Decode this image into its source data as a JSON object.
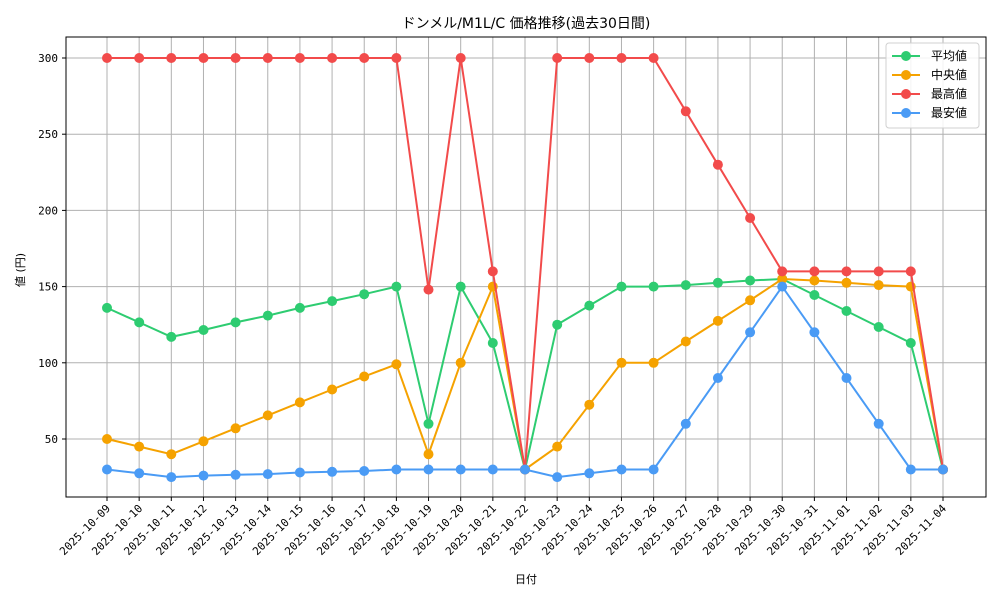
{
  "chart_data": {
    "type": "line",
    "title": "ドンメル/M1L/C 価格推移(過去30日間)",
    "xlabel": "日付",
    "ylabel": "値 (円)",
    "ylim": [
      11,
      315
    ],
    "yticks": [
      50,
      100,
      150,
      200,
      250,
      300
    ],
    "grid": true,
    "legend_position": "upper right",
    "categories": [
      "2025-10-09",
      "2025-10-10",
      "2025-10-11",
      "2025-10-12",
      "2025-10-13",
      "2025-10-14",
      "2025-10-15",
      "2025-10-16",
      "2025-10-17",
      "2025-10-18",
      "2025-10-19",
      "2025-10-20",
      "2025-10-21",
      "2025-10-22",
      "2025-10-23",
      "2025-10-24",
      "2025-10-25",
      "2025-10-26",
      "2025-10-27",
      "2025-10-28",
      "2025-10-29",
      "2025-10-30",
      "2025-10-31",
      "2025-11-01",
      "2025-11-02",
      "2025-11-03",
      "2025-11-04"
    ],
    "series": [
      {
        "name": "平均値",
        "color": "#2ecc71",
        "values": [
          136,
          126.5,
          117,
          121.5,
          126.5,
          131,
          136,
          140.5,
          145,
          150,
          60,
          150,
          113,
          30,
          125,
          137.5,
          150,
          150,
          151,
          152.5,
          154,
          155,
          144.5,
          134,
          123.5,
          113,
          30
        ]
      },
      {
        "name": "中央値",
        "color": "#f5a200",
        "values": [
          50,
          45,
          40,
          48.5,
          57,
          65.5,
          74,
          82.5,
          91,
          99,
          40,
          100,
          150,
          30,
          45,
          72.5,
          100,
          100,
          114,
          127.5,
          141,
          155,
          154,
          152.5,
          151,
          150,
          30
        ]
      },
      {
        "name": "最高値",
        "color": "#f24b4b",
        "values": [
          300,
          300,
          300,
          300,
          300,
          300,
          300,
          300,
          300,
          300,
          148,
          300,
          160,
          30,
          300,
          300,
          300,
          300,
          265,
          230,
          195,
          160,
          160,
          160,
          160,
          160,
          30
        ]
      },
      {
        "name": "最安値",
        "color": "#4a9bf5",
        "values": [
          30,
          27.5,
          25,
          26,
          26.5,
          27,
          28,
          28.5,
          29,
          30,
          30,
          30,
          30,
          30,
          25,
          27.5,
          30,
          30,
          60,
          90,
          120,
          150,
          120,
          90,
          60,
          30,
          30
        ]
      }
    ]
  }
}
